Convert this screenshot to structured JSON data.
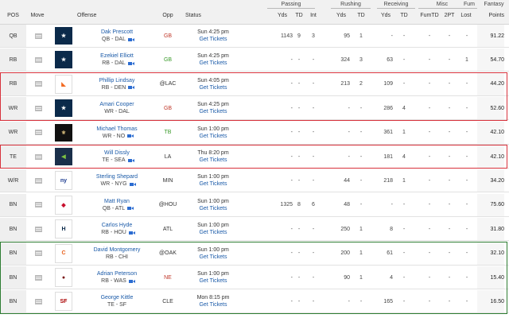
{
  "header": {
    "groups": [
      {
        "id": "passing",
        "label": "Passing"
      },
      {
        "id": "rushing",
        "label": "Rushing"
      },
      {
        "id": "receiving",
        "label": "Receiving"
      },
      {
        "id": "misc",
        "label": "Misc"
      },
      {
        "id": "fum",
        "label": "Fum"
      },
      {
        "id": "fantasy",
        "label": "Fantasy"
      }
    ],
    "columns": {
      "pos": "POS",
      "move": "Move",
      "offense": "Offense",
      "opp": "Opp",
      "status": "Status",
      "pass_yds": "Yds",
      "pass_td": "TD",
      "pass_int": "Int",
      "rush_yds": "Yds",
      "rush_td": "TD",
      "rec_yds": "Yds",
      "rec_td": "TD",
      "fumtd": "FumTD",
      "twopt": "2PT",
      "lost": "Lost",
      "points": "Points"
    }
  },
  "rows": [
    {
      "pos": "QB",
      "name": "Dak Prescott",
      "team": "QB - DAL",
      "video": true,
      "logo": "cowboys",
      "opp": "GB",
      "opp_color": "#c0392b",
      "when": "Sun 4:25 pm",
      "tickets": "Get Tickets",
      "pass_yds": "1143",
      "pass_td": "9",
      "pass_int": "3",
      "rush_yds": "95",
      "rush_td": "1",
      "rec_yds": "-",
      "rec_td": "-",
      "fumtd": "-",
      "twopt": "-",
      "lost": "-",
      "points": "91.22"
    },
    {
      "pos": "RB",
      "name": "Ezekiel Elliott",
      "team": "RB - DAL",
      "video": true,
      "logo": "cowboys",
      "opp": "GB",
      "opp_color": "#3a9a2a",
      "when": "Sun 4:25 pm",
      "tickets": "Get Tickets",
      "pass_yds": "-",
      "pass_td": "-",
      "pass_int": "-",
      "rush_yds": "324",
      "rush_td": "3",
      "rec_yds": "63",
      "rec_td": "-",
      "fumtd": "-",
      "twopt": "-",
      "lost": "1",
      "points": "54.70"
    },
    {
      "pos": "RB",
      "name": "Phillip Lindsay",
      "team": "RB - DEN",
      "video": true,
      "logo": "broncos",
      "opp": "@LAC",
      "opp_color": "#333333",
      "when": "Sun 4:05 pm",
      "tickets": "Get Tickets",
      "pass_yds": "-",
      "pass_td": "-",
      "pass_int": "-",
      "rush_yds": "213",
      "rush_td": "2",
      "rec_yds": "109",
      "rec_td": "-",
      "fumtd": "-",
      "twopt": "-",
      "lost": "-",
      "points": "44.20"
    },
    {
      "pos": "WR",
      "name": "Amari Cooper",
      "team": "WR - DAL",
      "video": false,
      "logo": "cowboys",
      "opp": "GB",
      "opp_color": "#c0392b",
      "when": "Sun 4:25 pm",
      "tickets": "Get Tickets",
      "pass_yds": "-",
      "pass_td": "-",
      "pass_int": "-",
      "rush_yds": "-",
      "rush_td": "-",
      "rec_yds": "286",
      "rec_td": "4",
      "fumtd": "-",
      "twopt": "-",
      "lost": "-",
      "points": "52.60"
    },
    {
      "pos": "WR",
      "name": "Michael Thomas",
      "team": "WR - NO",
      "video": true,
      "logo": "saints",
      "opp": "TB",
      "opp_color": "#3a9a2a",
      "when": "Sun 1:00 pm",
      "tickets": "Get Tickets",
      "pass_yds": "-",
      "pass_td": "-",
      "pass_int": "-",
      "rush_yds": "-",
      "rush_td": "-",
      "rec_yds": "361",
      "rec_td": "1",
      "fumtd": "-",
      "twopt": "-",
      "lost": "-",
      "points": "42.10"
    },
    {
      "pos": "TE",
      "name": "Will Dissly",
      "team": "TE - SEA",
      "video": true,
      "logo": "seahawks",
      "opp": "LA",
      "opp_color": "#333333",
      "when": "Thu 8:20 pm",
      "tickets": "Get Tickets",
      "pass_yds": "-",
      "pass_td": "-",
      "pass_int": "-",
      "rush_yds": "-",
      "rush_td": "-",
      "rec_yds": "181",
      "rec_td": "4",
      "fumtd": "-",
      "twopt": "-",
      "lost": "-",
      "points": "42.10"
    },
    {
      "pos": "W/R",
      "name": "Sterling Shepard",
      "team": "WR - NYG",
      "video": true,
      "logo": "giants",
      "opp": "MIN",
      "opp_color": "#333333",
      "when": "Sun 1:00 pm",
      "tickets": "Get Tickets",
      "pass_yds": "-",
      "pass_td": "-",
      "pass_int": "-",
      "rush_yds": "44",
      "rush_td": "-",
      "rec_yds": "218",
      "rec_td": "1",
      "fumtd": "-",
      "twopt": "-",
      "lost": "-",
      "points": "34.20"
    },
    {
      "pos": "BN",
      "name": "Matt Ryan",
      "team": "QB - ATL",
      "video": true,
      "logo": "falcons",
      "opp": "@HOU",
      "opp_color": "#333333",
      "when": "Sun 1:00 pm",
      "tickets": "Get Tickets",
      "pass_yds": "1325",
      "pass_td": "8",
      "pass_int": "6",
      "rush_yds": "48",
      "rush_td": "-",
      "rec_yds": "-",
      "rec_td": "-",
      "fumtd": "-",
      "twopt": "-",
      "lost": "-",
      "points": "75.60"
    },
    {
      "pos": "BN",
      "name": "Carlos Hyde",
      "team": "RB - HOU",
      "video": true,
      "logo": "texans",
      "opp": "ATL",
      "opp_color": "#333333",
      "when": "Sun 1:00 pm",
      "tickets": "Get Tickets",
      "pass_yds": "-",
      "pass_td": "-",
      "pass_int": "-",
      "rush_yds": "250",
      "rush_td": "1",
      "rec_yds": "8",
      "rec_td": "-",
      "fumtd": "-",
      "twopt": "-",
      "lost": "-",
      "points": "31.80"
    },
    {
      "pos": "BN",
      "name": "David Montgomery",
      "team": "RB - CHI",
      "video": false,
      "logo": "bears",
      "opp": "@OAK",
      "opp_color": "#333333",
      "when": "Sun 1:00 pm",
      "tickets": "Get Tickets",
      "pass_yds": "-",
      "pass_td": "-",
      "pass_int": "-",
      "rush_yds": "200",
      "rush_td": "1",
      "rec_yds": "61",
      "rec_td": "-",
      "fumtd": "-",
      "twopt": "-",
      "lost": "-",
      "points": "32.10"
    },
    {
      "pos": "BN",
      "name": "Adrian Peterson",
      "team": "RB - WAS",
      "video": true,
      "logo": "redskins",
      "opp": "NE",
      "opp_color": "#c0392b",
      "when": "Sun 1:00 pm",
      "tickets": "Get Tickets",
      "pass_yds": "-",
      "pass_td": "-",
      "pass_int": "-",
      "rush_yds": "90",
      "rush_td": "1",
      "rec_yds": "4",
      "rec_td": "-",
      "fumtd": "-",
      "twopt": "-",
      "lost": "-",
      "points": "15.40"
    },
    {
      "pos": "BN",
      "name": "George Kittle",
      "team": "TE - SF",
      "video": false,
      "logo": "49ers",
      "opp": "CLE",
      "opp_color": "#333333",
      "when": "Mon 8:15 pm",
      "tickets": "Get Tickets",
      "pass_yds": "-",
      "pass_td": "-",
      "pass_int": "-",
      "rush_yds": "-",
      "rush_td": "-",
      "rec_yds": "165",
      "rec_td": "-",
      "fumtd": "-",
      "twopt": "-",
      "lost": "-",
      "points": "16.50"
    }
  ],
  "logos": {
    "cowboys": {
      "bg": "#0b2a4a",
      "fg": "#ffffff",
      "glyph": "★"
    },
    "broncos": {
      "bg": "#ffffff",
      "fg": "#f26a21",
      "glyph": "◣"
    },
    "saints": {
      "bg": "#111111",
      "fg": "#c9b074",
      "glyph": "⚜"
    },
    "seahawks": {
      "bg": "#1a2f4a",
      "fg": "#7cc142",
      "glyph": "◀"
    },
    "giants": {
      "bg": "#ffffff",
      "fg": "#1a3a8f",
      "glyph": "ny"
    },
    "falcons": {
      "bg": "#ffffff",
      "fg": "#c8102e",
      "glyph": "◆"
    },
    "texans": {
      "bg": "#ffffff",
      "fg": "#0b2a4a",
      "glyph": "H"
    },
    "bears": {
      "bg": "#ffffff",
      "fg": "#e8601c",
      "glyph": "C"
    },
    "redskins": {
      "bg": "#ffffff",
      "fg": "#7a1a1a",
      "glyph": "●"
    },
    "49ers": {
      "bg": "#ffffff",
      "fg": "#aa0000",
      "glyph": "SF"
    }
  },
  "highlights": {
    "red": [
      [
        2,
        3
      ],
      [
        5,
        5
      ]
    ],
    "green": [
      [
        9,
        11
      ]
    ],
    "red_color": "#d8323c",
    "green_color": "#2e7d32"
  }
}
